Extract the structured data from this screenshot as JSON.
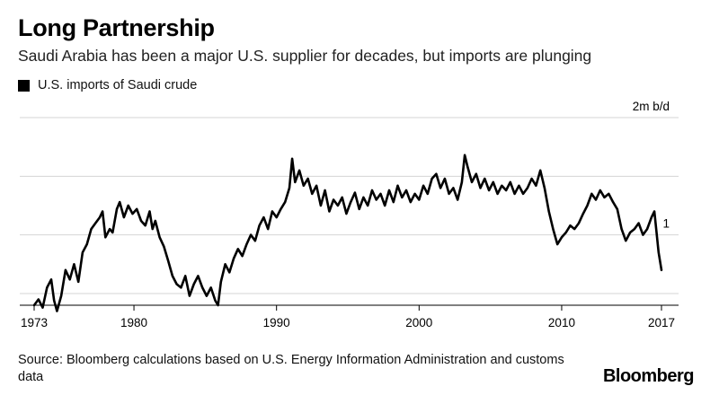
{
  "header": {
    "title": "Long Partnership",
    "subtitle": "Saudi Arabia has been a major U.S. supplier for decades, but imports are plunging"
  },
  "footer": {
    "source": "Source: Bloomberg calculations based on U.S. Energy Information Administration and customs data",
    "brand": "Bloomberg"
  },
  "chart_data": {
    "type": "line",
    "title": "Long Partnership",
    "subtitle": "Saudi Arabia has been a major U.S. supplier for decades, but imports are plunging",
    "xlabel": "",
    "ylabel": "",
    "units": "m b/d",
    "xlim": [
      1973,
      2017
    ],
    "ylim": [
      0.4,
      2.1
    ],
    "grid": true,
    "legend_position": "top-left",
    "x_tick_labels": [
      {
        "value": 1973,
        "label": "1973"
      },
      {
        "value": 1980,
        "label": "1980"
      },
      {
        "value": 1990,
        "label": "1990"
      },
      {
        "value": 2000,
        "label": "2000"
      },
      {
        "value": 2010,
        "label": "2010"
      },
      {
        "value": 2017,
        "label": "2017"
      }
    ],
    "y_gridlines": [
      0.5,
      1.0,
      1.5,
      2.0
    ],
    "y_tick_labels": [
      {
        "value": 2.0,
        "label": "2m b/d"
      },
      {
        "value": 1.0,
        "label": "1"
      }
    ],
    "series": [
      {
        "name": "U.S. imports of Saudi crude",
        "color": "#000000",
        "points": [
          [
            1973.0,
            0.4
          ],
          [
            1973.3,
            0.45
          ],
          [
            1973.6,
            0.38
          ],
          [
            1973.9,
            0.55
          ],
          [
            1974.2,
            0.62
          ],
          [
            1974.4,
            0.44
          ],
          [
            1974.6,
            0.35
          ],
          [
            1974.9,
            0.48
          ],
          [
            1975.2,
            0.7
          ],
          [
            1975.5,
            0.62
          ],
          [
            1975.8,
            0.75
          ],
          [
            1976.1,
            0.6
          ],
          [
            1976.4,
            0.85
          ],
          [
            1976.7,
            0.92
          ],
          [
            1977.0,
            1.05
          ],
          [
            1977.3,
            1.1
          ],
          [
            1977.6,
            1.15
          ],
          [
            1977.8,
            1.2
          ],
          [
            1978.0,
            0.98
          ],
          [
            1978.3,
            1.05
          ],
          [
            1978.5,
            1.02
          ],
          [
            1978.8,
            1.22
          ],
          [
            1979.0,
            1.28
          ],
          [
            1979.3,
            1.15
          ],
          [
            1979.6,
            1.25
          ],
          [
            1979.9,
            1.18
          ],
          [
            1980.2,
            1.22
          ],
          [
            1980.5,
            1.12
          ],
          [
            1980.8,
            1.08
          ],
          [
            1981.1,
            1.2
          ],
          [
            1981.3,
            1.05
          ],
          [
            1981.5,
            1.12
          ],
          [
            1981.8,
            0.98
          ],
          [
            1982.1,
            0.9
          ],
          [
            1982.4,
            0.78
          ],
          [
            1982.7,
            0.65
          ],
          [
            1983.0,
            0.58
          ],
          [
            1983.3,
            0.55
          ],
          [
            1983.6,
            0.65
          ],
          [
            1983.9,
            0.48
          ],
          [
            1984.2,
            0.58
          ],
          [
            1984.5,
            0.65
          ],
          [
            1984.8,
            0.55
          ],
          [
            1985.1,
            0.48
          ],
          [
            1985.4,
            0.55
          ],
          [
            1985.7,
            0.44
          ],
          [
            1985.9,
            0.4
          ],
          [
            1986.1,
            0.6
          ],
          [
            1986.4,
            0.75
          ],
          [
            1986.7,
            0.68
          ],
          [
            1987.0,
            0.8
          ],
          [
            1987.3,
            0.88
          ],
          [
            1987.6,
            0.82
          ],
          [
            1987.9,
            0.92
          ],
          [
            1988.2,
            1.0
          ],
          [
            1988.5,
            0.95
          ],
          [
            1988.8,
            1.08
          ],
          [
            1989.1,
            1.15
          ],
          [
            1989.4,
            1.05
          ],
          [
            1989.7,
            1.2
          ],
          [
            1990.0,
            1.15
          ],
          [
            1990.3,
            1.22
          ],
          [
            1990.6,
            1.28
          ],
          [
            1990.9,
            1.4
          ],
          [
            1991.1,
            1.65
          ],
          [
            1991.3,
            1.45
          ],
          [
            1991.6,
            1.55
          ],
          [
            1991.9,
            1.42
          ],
          [
            1992.2,
            1.48
          ],
          [
            1992.5,
            1.35
          ],
          [
            1992.8,
            1.42
          ],
          [
            1993.1,
            1.25
          ],
          [
            1993.4,
            1.38
          ],
          [
            1993.7,
            1.2
          ],
          [
            1994.0,
            1.3
          ],
          [
            1994.3,
            1.25
          ],
          [
            1994.6,
            1.32
          ],
          [
            1994.9,
            1.18
          ],
          [
            1995.2,
            1.28
          ],
          [
            1995.5,
            1.36
          ],
          [
            1995.8,
            1.22
          ],
          [
            1996.1,
            1.32
          ],
          [
            1996.4,
            1.25
          ],
          [
            1996.7,
            1.38
          ],
          [
            1997.0,
            1.3
          ],
          [
            1997.3,
            1.35
          ],
          [
            1997.6,
            1.25
          ],
          [
            1997.9,
            1.38
          ],
          [
            1998.2,
            1.28
          ],
          [
            1998.5,
            1.42
          ],
          [
            1998.8,
            1.32
          ],
          [
            1999.1,
            1.38
          ],
          [
            1999.4,
            1.28
          ],
          [
            1999.7,
            1.35
          ],
          [
            2000.0,
            1.3
          ],
          [
            2000.3,
            1.42
          ],
          [
            2000.6,
            1.35
          ],
          [
            2000.9,
            1.48
          ],
          [
            2001.2,
            1.52
          ],
          [
            2001.5,
            1.4
          ],
          [
            2001.8,
            1.48
          ],
          [
            2002.1,
            1.35
          ],
          [
            2002.4,
            1.4
          ],
          [
            2002.7,
            1.3
          ],
          [
            2003.0,
            1.45
          ],
          [
            2003.2,
            1.68
          ],
          [
            2003.4,
            1.58
          ],
          [
            2003.7,
            1.45
          ],
          [
            2004.0,
            1.52
          ],
          [
            2004.3,
            1.4
          ],
          [
            2004.6,
            1.48
          ],
          [
            2004.9,
            1.38
          ],
          [
            2005.2,
            1.45
          ],
          [
            2005.5,
            1.35
          ],
          [
            2005.8,
            1.42
          ],
          [
            2006.1,
            1.38
          ],
          [
            2006.4,
            1.45
          ],
          [
            2006.7,
            1.35
          ],
          [
            2007.0,
            1.42
          ],
          [
            2007.3,
            1.35
          ],
          [
            2007.6,
            1.4
          ],
          [
            2007.9,
            1.48
          ],
          [
            2008.2,
            1.42
          ],
          [
            2008.5,
            1.55
          ],
          [
            2008.8,
            1.4
          ],
          [
            2009.1,
            1.2
          ],
          [
            2009.4,
            1.05
          ],
          [
            2009.7,
            0.92
          ],
          [
            2010.0,
            0.98
          ],
          [
            2010.3,
            1.02
          ],
          [
            2010.6,
            1.08
          ],
          [
            2010.9,
            1.05
          ],
          [
            2011.2,
            1.1
          ],
          [
            2011.5,
            1.18
          ],
          [
            2011.8,
            1.25
          ],
          [
            2012.1,
            1.35
          ],
          [
            2012.4,
            1.3
          ],
          [
            2012.7,
            1.38
          ],
          [
            2013.0,
            1.32
          ],
          [
            2013.3,
            1.35
          ],
          [
            2013.6,
            1.28
          ],
          [
            2013.9,
            1.22
          ],
          [
            2014.2,
            1.05
          ],
          [
            2014.5,
            0.95
          ],
          [
            2014.8,
            1.02
          ],
          [
            2015.1,
            1.05
          ],
          [
            2015.4,
            1.1
          ],
          [
            2015.7,
            1.0
          ],
          [
            2016.0,
            1.05
          ],
          [
            2016.3,
            1.15
          ],
          [
            2016.5,
            1.2
          ],
          [
            2016.8,
            0.85
          ],
          [
            2017.0,
            0.7
          ]
        ]
      }
    ]
  }
}
